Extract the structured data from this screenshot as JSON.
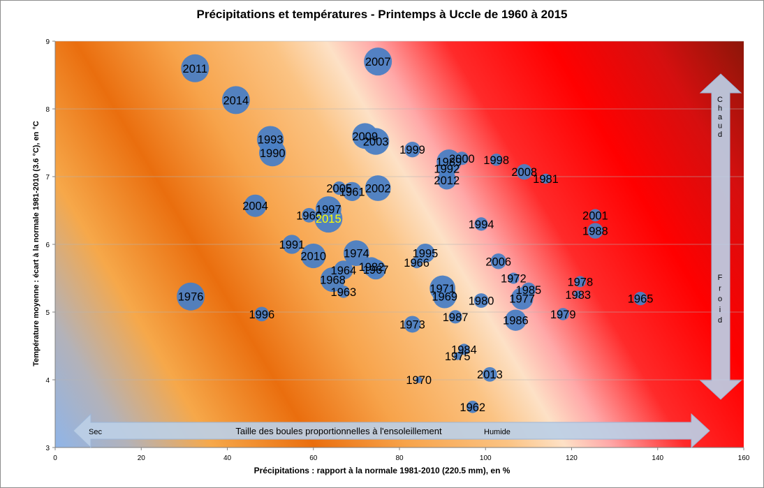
{
  "chart_data": {
    "type": "bubble",
    "title": "Précipitations  et températures - Printemps à Uccle de 1960 à 2015",
    "xlabel": "Précipitations : rapport à la normale 1981-2010 (220.5 mm), en %",
    "ylabel": "Température moyenne : écart à  la normale 1981-2010 (3.6 °C), en °C",
    "xlim": [
      0,
      160
    ],
    "ylim": [
      3,
      9
    ],
    "x_ticks": [
      "0",
      "20",
      "40",
      "60",
      "80",
      "100",
      "120",
      "140",
      "160"
    ],
    "y_ticks": [
      "3",
      "4",
      "5",
      "6",
      "7",
      "8",
      "9"
    ],
    "grid": "horizontal",
    "colors": {
      "bubble": "#4a7ec4",
      "highlight_label": "#ffff00",
      "arrow_fill": "#bccfe6",
      "hot": "#ff0000",
      "dry_cold": "#8fb4e8",
      "mid": "#f6a84a"
    },
    "annotations": {
      "horizontal_arrow": "Taille des boules proportionnelles  à l'ensoleillement",
      "left_label": "Sec",
      "right_label": "Humide",
      "vertical_top": "Chaud",
      "vertical_bottom": "Froid"
    },
    "points": [
      {
        "label": "2011",
        "x": 32.5,
        "y": 8.6,
        "size": 1.0
      },
      {
        "label": "2007",
        "x": 75,
        "y": 8.7,
        "size": 1.0
      },
      {
        "label": "2014",
        "x": 42,
        "y": 8.13,
        "size": 1.0
      },
      {
        "label": "1993",
        "x": 50,
        "y": 7.55,
        "size": 0.95
      },
      {
        "label": "1990",
        "x": 50.5,
        "y": 7.35,
        "size": 0.95
      },
      {
        "label": "2009",
        "x": 72,
        "y": 7.6,
        "size": 0.9
      },
      {
        "label": "2003",
        "x": 74.5,
        "y": 7.52,
        "size": 0.95
      },
      {
        "label": "1999",
        "x": 83,
        "y": 7.4,
        "size": 0.45
      },
      {
        "label": "2000",
        "x": 94.5,
        "y": 7.27,
        "size": 0.35
      },
      {
        "label": "1998",
        "x": 102.5,
        "y": 7.25,
        "size": 0.3
      },
      {
        "label": "1989",
        "x": 91.5,
        "y": 7.22,
        "size": 0.85
      },
      {
        "label": "1992",
        "x": 91,
        "y": 7.12,
        "size": 0.6
      },
      {
        "label": "2012",
        "x": 91,
        "y": 6.95,
        "size": 0.6
      },
      {
        "label": "2008",
        "x": 109,
        "y": 7.07,
        "size": 0.45
      },
      {
        "label": "1981",
        "x": 114,
        "y": 6.97,
        "size": 0.2
      },
      {
        "label": "2005",
        "x": 66,
        "y": 6.83,
        "size": 0.35
      },
      {
        "label": "1961",
        "x": 69,
        "y": 6.78,
        "size": 0.6
      },
      {
        "label": "2002",
        "x": 75,
        "y": 6.83,
        "size": 0.9
      },
      {
        "label": "2004",
        "x": 46.5,
        "y": 6.57,
        "size": 0.75
      },
      {
        "label": "1997",
        "x": 63.5,
        "y": 6.52,
        "size": 0.9
      },
      {
        "label": "1960",
        "x": 59,
        "y": 6.43,
        "size": 0.4
      },
      {
        "label": "2015",
        "x": 63.5,
        "y": 6.38,
        "size": 1.0
      },
      {
        "label": "2001",
        "x": 125.5,
        "y": 6.43,
        "size": 0.3
      },
      {
        "label": "1988",
        "x": 125.5,
        "y": 6.2,
        "size": 0.45
      },
      {
        "label": "1994",
        "x": 99,
        "y": 6.3,
        "size": 0.35
      },
      {
        "label": "1991",
        "x": 55,
        "y": 6.0,
        "size": 0.6
      },
      {
        "label": "2010",
        "x": 60,
        "y": 5.83,
        "size": 0.85
      },
      {
        "label": "1974",
        "x": 70,
        "y": 5.87,
        "size": 0.9
      },
      {
        "label": "1995",
        "x": 86,
        "y": 5.87,
        "size": 0.6
      },
      {
        "label": "1966",
        "x": 84,
        "y": 5.73,
        "size": 0.25
      },
      {
        "label": "2006",
        "x": 103,
        "y": 5.75,
        "size": 0.45
      },
      {
        "label": "1964",
        "x": 67,
        "y": 5.62,
        "size": 0.6
      },
      {
        "label": "1982",
        "x": 73.5,
        "y": 5.67,
        "size": 0.6
      },
      {
        "label": "1967",
        "x": 74.5,
        "y": 5.63,
        "size": 0.65
      },
      {
        "label": "1968",
        "x": 64.5,
        "y": 5.48,
        "size": 0.85
      },
      {
        "label": "1972",
        "x": 106.5,
        "y": 5.5,
        "size": 0.25
      },
      {
        "label": "1978",
        "x": 122,
        "y": 5.45,
        "size": 0.25
      },
      {
        "label": "1971",
        "x": 90,
        "y": 5.35,
        "size": 0.9
      },
      {
        "label": "1985",
        "x": 110,
        "y": 5.33,
        "size": 0.4
      },
      {
        "label": "1963",
        "x": 67,
        "y": 5.3,
        "size": 0.3
      },
      {
        "label": "1983",
        "x": 121.5,
        "y": 5.26,
        "size": 0.1
      },
      {
        "label": "1969",
        "x": 90.5,
        "y": 5.23,
        "size": 0.8
      },
      {
        "label": "1977",
        "x": 108.5,
        "y": 5.2,
        "size": 0.75
      },
      {
        "label": "1980",
        "x": 99,
        "y": 5.17,
        "size": 0.4
      },
      {
        "label": "1976",
        "x": 31.5,
        "y": 5.23,
        "size": 1.0
      },
      {
        "label": "1965",
        "x": 136,
        "y": 5.2,
        "size": 0.35
      },
      {
        "label": "1996",
        "x": 48,
        "y": 4.97,
        "size": 0.4
      },
      {
        "label": "1979",
        "x": 118,
        "y": 4.97,
        "size": 0.3
      },
      {
        "label": "1987",
        "x": 93,
        "y": 4.93,
        "size": 0.35
      },
      {
        "label": "1986",
        "x": 107,
        "y": 4.88,
        "size": 0.7
      },
      {
        "label": "1973",
        "x": 83,
        "y": 4.82,
        "size": 0.5
      },
      {
        "label": "1984",
        "x": 95,
        "y": 4.45,
        "size": 0.25
      },
      {
        "label": "1975",
        "x": 93.5,
        "y": 4.35,
        "size": 0.1
      },
      {
        "label": "2013",
        "x": 101,
        "y": 4.08,
        "size": 0.4
      },
      {
        "label": "1970",
        "x": 84.5,
        "y": 4.0,
        "size": 0.05
      },
      {
        "label": "1962",
        "x": 97,
        "y": 3.6,
        "size": 0.3
      }
    ]
  }
}
